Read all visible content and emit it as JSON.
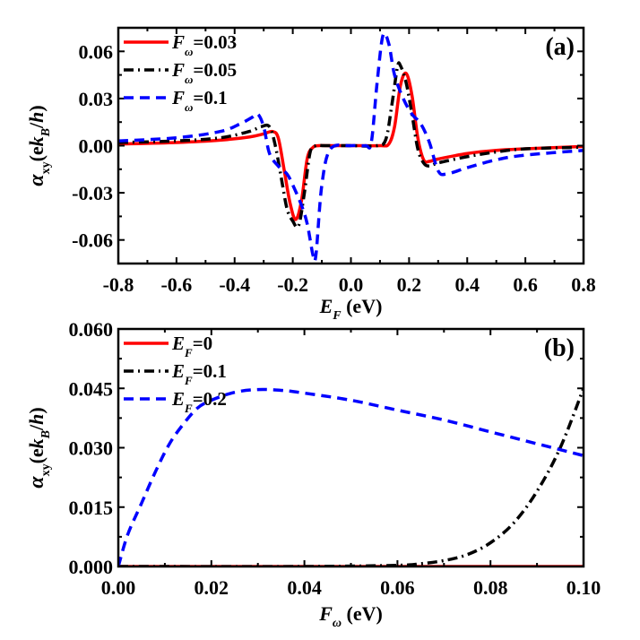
{
  "chart_data": [
    {
      "id": "a",
      "type": "line",
      "panel_label": "(a)",
      "xlabel": {
        "main": "E",
        "sub": "F",
        "unit": " (eV)"
      },
      "ylabel": {
        "main": "α",
        "sub": "xy",
        "unit_pre": "(ek",
        "unit_sub": "B",
        "unit_post": "/h)"
      },
      "xlim": [
        -0.8,
        0.8
      ],
      "ylim": [
        -0.075,
        0.075
      ],
      "xticks": [
        -0.8,
        -0.6,
        -0.4,
        -0.2,
        0.0,
        0.2,
        0.4,
        0.6,
        0.8
      ],
      "xtick_labels": [
        "-0.8",
        "-0.6",
        "-0.4",
        "-0.2",
        "0.0",
        "0.2",
        "0.4",
        "0.6",
        "0.8"
      ],
      "yticks": [
        -0.06,
        -0.03,
        0.0,
        0.03,
        0.06
      ],
      "ytick_labels": [
        "-0.06",
        "-0.03",
        "0.00",
        "0.03",
        "0.06"
      ],
      "grid": false,
      "legend_position": "top-left",
      "series": [
        {
          "name": "F_ω=0.03",
          "legend": {
            "main": "F",
            "sub": "ω",
            "value": "=0.03"
          },
          "color": "#ff0000",
          "style": "solid",
          "x": [
            -0.8,
            -0.6,
            -0.45,
            -0.35,
            -0.3,
            -0.27,
            -0.25,
            -0.23,
            -0.21,
            -0.19,
            -0.17,
            -0.15,
            -0.13,
            -0.11,
            -0.08,
            0.0,
            0.1,
            0.13,
            0.15,
            0.17,
            0.19,
            0.21,
            0.23,
            0.25,
            0.27,
            0.3,
            0.4,
            0.5,
            0.6,
            0.8
          ],
          "y": [
            0.001,
            0.002,
            0.0035,
            0.0055,
            0.0075,
            0.009,
            0.005,
            -0.015,
            -0.036,
            -0.047,
            -0.035,
            -0.008,
            -0.001,
            0.0,
            0.0,
            0.0,
            0.0,
            0.001,
            0.012,
            0.038,
            0.046,
            0.032,
            0.005,
            -0.009,
            -0.01,
            -0.0085,
            -0.005,
            -0.003,
            -0.002,
            -0.0005
          ]
        },
        {
          "name": "F_ω=0.05",
          "legend": {
            "main": "F",
            "sub": "ω",
            "value": "=0.05"
          },
          "color": "#000000",
          "style": "dashdot",
          "x": [
            -0.8,
            -0.6,
            -0.45,
            -0.35,
            -0.31,
            -0.28,
            -0.26,
            -0.24,
            -0.22,
            -0.2,
            -0.18,
            -0.16,
            -0.14,
            -0.12,
            -0.09,
            0.0,
            0.09,
            0.12,
            0.14,
            0.16,
            0.17,
            0.19,
            0.21,
            0.23,
            0.25,
            0.27,
            0.3,
            0.4,
            0.5,
            0.6,
            0.8
          ],
          "y": [
            0.002,
            0.003,
            0.005,
            0.009,
            0.012,
            0.012,
            0.0,
            -0.02,
            -0.04,
            -0.048,
            -0.051,
            -0.03,
            -0.004,
            0.0,
            0.0,
            0.0,
            0.0,
            0.004,
            0.025,
            0.05,
            0.051,
            0.04,
            0.02,
            -0.002,
            -0.011,
            -0.013,
            -0.011,
            -0.007,
            -0.004,
            -0.002,
            -0.001
          ]
        },
        {
          "name": "F_ω=0.1",
          "legend": {
            "main": "F",
            "sub": "ω",
            "value": "=0.1"
          },
          "color": "#0000ff",
          "style": "dashed",
          "x": [
            -0.8,
            -0.6,
            -0.45,
            -0.38,
            -0.34,
            -0.32,
            -0.3,
            -0.28,
            -0.25,
            -0.22,
            -0.2,
            -0.17,
            -0.15,
            -0.13,
            -0.12,
            -0.1,
            -0.07,
            0.0,
            0.05,
            0.07,
            0.09,
            0.11,
            0.13,
            0.15,
            0.18,
            0.21,
            0.24,
            0.27,
            0.3,
            0.33,
            0.4,
            0.5,
            0.6,
            0.8
          ],
          "y": [
            0.003,
            0.005,
            0.009,
            0.014,
            0.018,
            0.02,
            0.012,
            -0.005,
            -0.013,
            -0.018,
            -0.025,
            -0.038,
            -0.05,
            -0.07,
            -0.069,
            -0.025,
            -0.002,
            0.0,
            0.0,
            0.002,
            0.04,
            0.07,
            0.065,
            0.045,
            0.03,
            0.02,
            0.014,
            0.002,
            -0.016,
            -0.018,
            -0.014,
            -0.009,
            -0.006,
            -0.003
          ]
        }
      ]
    },
    {
      "id": "b",
      "type": "line",
      "panel_label": "(b)",
      "xlabel": {
        "main": "F",
        "sub": "ω",
        "unit": " (eV)"
      },
      "ylabel": {
        "main": "α",
        "sub": "xy",
        "unit_pre": "(ek",
        "unit_sub": "B",
        "unit_post": "/h)"
      },
      "xlim": [
        0.0,
        0.1
      ],
      "ylim": [
        0.0,
        0.06
      ],
      "xticks": [
        0.0,
        0.02,
        0.04,
        0.06,
        0.08,
        0.1
      ],
      "xtick_labels": [
        "0.00",
        "0.02",
        "0.04",
        "0.06",
        "0.08",
        "0.10"
      ],
      "yticks": [
        0.0,
        0.015,
        0.03,
        0.045,
        0.06
      ],
      "ytick_labels": [
        "0.000",
        "0.015",
        "0.030",
        "0.045",
        "0.060"
      ],
      "grid": false,
      "legend_position": "top-left",
      "series": [
        {
          "name": "E_F=0",
          "legend": {
            "main": "E",
            "sub": "F",
            "value": "=0"
          },
          "color": "#ff0000",
          "style": "solid",
          "x": [
            0.0,
            0.1
          ],
          "y": [
            0.0,
            0.0
          ]
        },
        {
          "name": "E_F=0.1",
          "legend": {
            "main": "E",
            "sub": "F",
            "value": "=0.1"
          },
          "color": "#000000",
          "style": "dashdot",
          "x": [
            0.0,
            0.04,
            0.06,
            0.065,
            0.07,
            0.075,
            0.08,
            0.085,
            0.09,
            0.095,
            0.1
          ],
          "y": [
            0.0,
            0.0,
            0.0003,
            0.0007,
            0.0015,
            0.003,
            0.006,
            0.011,
            0.019,
            0.03,
            0.045
          ]
        },
        {
          "name": "E_F=0.2",
          "legend": {
            "main": "E",
            "sub": "F",
            "value": "=0.2"
          },
          "color": "#0000ff",
          "style": "dashed",
          "x": [
            0.0,
            0.002,
            0.005,
            0.008,
            0.011,
            0.014,
            0.017,
            0.02,
            0.025,
            0.03,
            0.035,
            0.04,
            0.05,
            0.06,
            0.07,
            0.08,
            0.09,
            0.1
          ],
          "y": [
            0.0,
            0.008,
            0.016,
            0.024,
            0.031,
            0.036,
            0.04,
            0.042,
            0.044,
            0.0447,
            0.0445,
            0.0438,
            0.042,
            0.0395,
            0.037,
            0.034,
            0.031,
            0.028
          ]
        }
      ]
    }
  ]
}
